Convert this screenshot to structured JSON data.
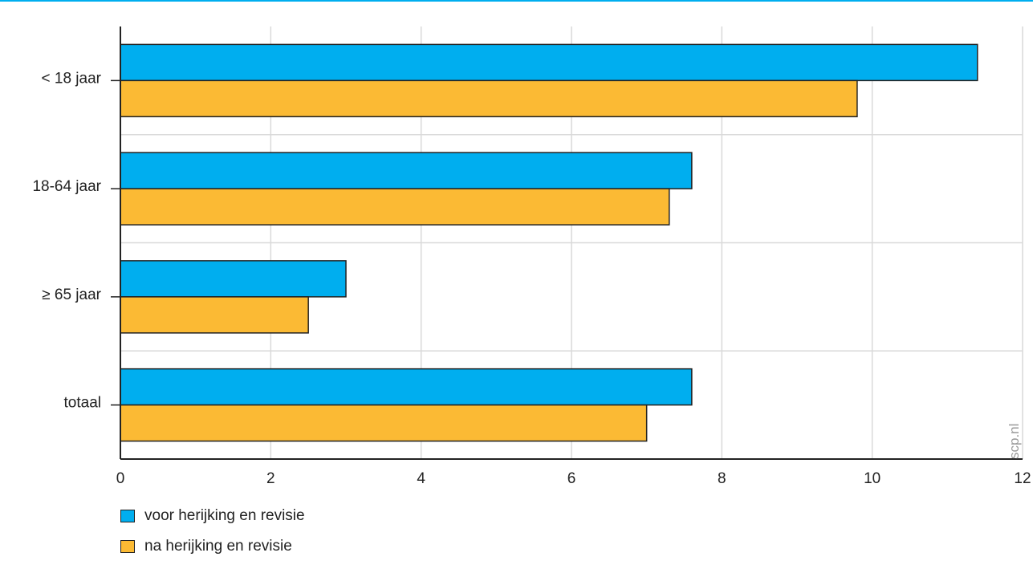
{
  "chart_data": {
    "type": "bar",
    "orientation": "horizontal",
    "categories": [
      "< 18 jaar",
      "18-64 jaar",
      "≥ 65 jaar",
      "totaal"
    ],
    "series": [
      {
        "name": "voor herijking en revisie",
        "color": "#00aeef",
        "values": [
          11.4,
          7.6,
          3.0,
          7.6
        ]
      },
      {
        "name": "na herijking en revisie",
        "color": "#fbba34",
        "values": [
          9.8,
          7.3,
          2.5,
          7.0
        ]
      }
    ],
    "xlim": [
      0,
      12
    ],
    "xticks": [
      0,
      2,
      4,
      6,
      8,
      10,
      12
    ],
    "grid": true,
    "legend_position": "bottom-left",
    "title": "",
    "xlabel": "",
    "ylabel": ""
  },
  "watermark": "scp.nl",
  "colors": {
    "accent_line": "#00aeef",
    "grid": "#d9d9d9",
    "axis": "#222222"
  }
}
